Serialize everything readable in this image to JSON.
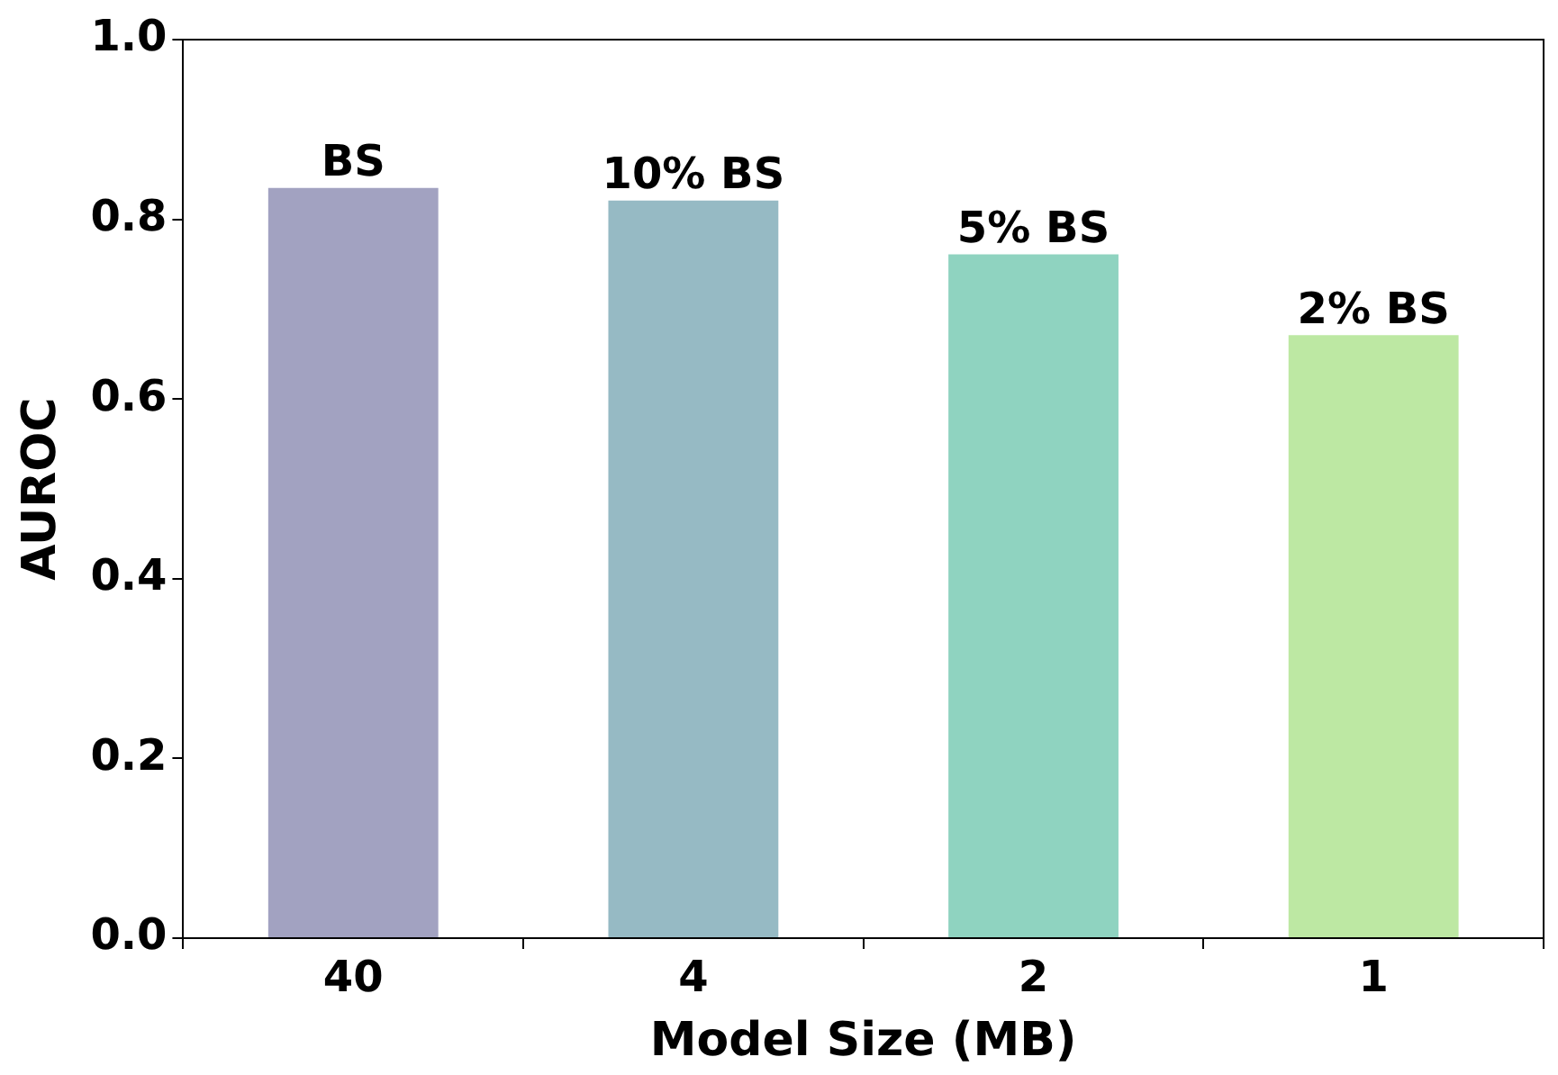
{
  "chart_data": {
    "type": "bar",
    "xlabel": "Model Size (MB)",
    "ylabel": "AUROC",
    "categories": [
      "40",
      "4",
      "2",
      "1"
    ],
    "values": [
      0.835,
      0.821,
      0.761,
      0.671
    ],
    "colors": [
      "#a2a2c1",
      "#96bac4",
      "#8fd3c0",
      "#bde8a3"
    ],
    "ylim": [
      0,
      1
    ],
    "yticks": [
      {
        "value": 0,
        "label": "0.0"
      },
      {
        "value": 0.2,
        "label": "0.2"
      },
      {
        "value": 0.4,
        "label": "0.4"
      },
      {
        "value": 0.6,
        "label": "0.6"
      },
      {
        "value": 0.8,
        "label": "0.8"
      },
      {
        "value": 1,
        "label": "1.0"
      }
    ],
    "annotations": [
      {
        "text": "BS",
        "x": "40",
        "y": 0.835
      },
      {
        "text": "10% BS",
        "x": "4",
        "y": 0.821
      },
      {
        "text": "5% BS",
        "x": "2",
        "y": 0.761
      },
      {
        "text": "2% BS",
        "x": "1",
        "y": 0.671
      }
    ]
  }
}
